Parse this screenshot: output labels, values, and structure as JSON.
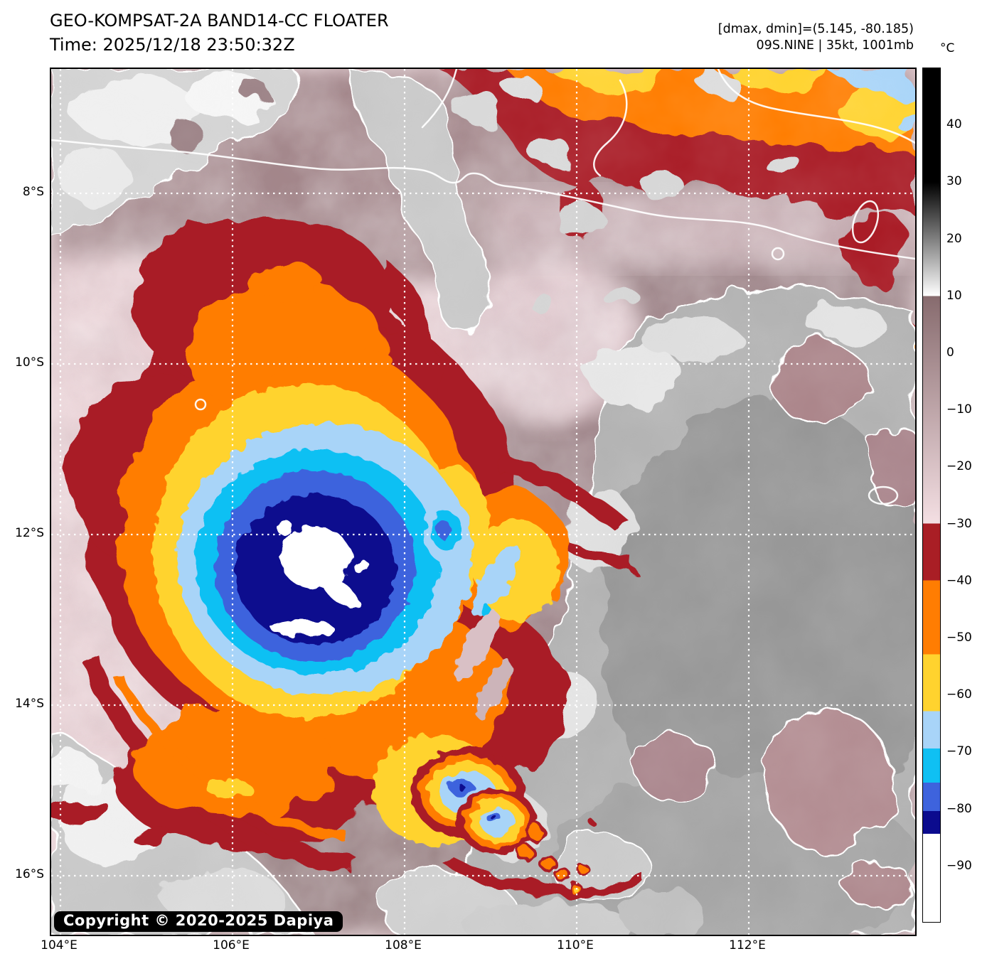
{
  "header": {
    "title": "GEO-KOMPSAT-2A BAND14-CC FLOATER",
    "time": "Time: 2025/12/18 23:50:32Z",
    "range_info": "[dmax, dmin]=(5.145, -80.185)",
    "storm_info": "09S.NINE | 35kt, 1001mb"
  },
  "map": {
    "copyright": "Copyright © 2020-2025 Dapiya",
    "x_axis": {
      "ticks": [
        {
          "deg": 104,
          "label": "104°E"
        },
        {
          "deg": 106,
          "label": "106°E"
        },
        {
          "deg": 108,
          "label": "108°E"
        },
        {
          "deg": 110,
          "label": "110°E"
        },
        {
          "deg": 112,
          "label": "112°E"
        }
      ]
    },
    "y_axis": {
      "ticks": [
        {
          "deg": 8,
          "label": "8°S"
        },
        {
          "deg": 10,
          "label": "10°S"
        },
        {
          "deg": 12,
          "label": "12°S"
        },
        {
          "deg": 14,
          "label": "14°S"
        },
        {
          "deg": 16,
          "label": "16°S"
        }
      ]
    }
  },
  "colorbar": {
    "unit": "°C",
    "max": 50,
    "min": -100,
    "ticks": [
      {
        "value": 40,
        "label": "40"
      },
      {
        "value": 30,
        "label": "30"
      },
      {
        "value": 20,
        "label": "20"
      },
      {
        "value": 10,
        "label": "10"
      },
      {
        "value": 0,
        "label": "0"
      },
      {
        "value": -10,
        "label": "−10"
      },
      {
        "value": -20,
        "label": "−20"
      },
      {
        "value": -30,
        "label": "−30"
      },
      {
        "value": -40,
        "label": "−40"
      },
      {
        "value": -50,
        "label": "−50"
      },
      {
        "value": -60,
        "label": "−60"
      },
      {
        "value": -70,
        "label": "−70"
      },
      {
        "value": -80,
        "label": "−80"
      },
      {
        "value": -90,
        "label": "−90"
      }
    ],
    "segments": [
      {
        "from": 50,
        "to": 30,
        "color": "#000000"
      },
      {
        "from": 30,
        "to": 10,
        "color_top": "#000000",
        "color_bottom": "#ffffff"
      },
      {
        "from": 10,
        "to": -30,
        "color_top": "#876b6e",
        "color_bottom": "#f4dfe3"
      },
      {
        "from": -30,
        "to": -40,
        "color": "#a91e25"
      },
      {
        "from": -40,
        "to": -53,
        "color": "#ff7d02"
      },
      {
        "from": -53,
        "to": -63,
        "color": "#ffd32e"
      },
      {
        "from": -63,
        "to": -69.5,
        "color": "#a8d4f8"
      },
      {
        "from": -69.5,
        "to": -75.5,
        "color": "#0fc0f3"
      },
      {
        "from": -75.5,
        "to": -80.5,
        "color": "#3e63dd"
      },
      {
        "from": -80.5,
        "to": -84.5,
        "color": "#0b0b8e"
      },
      {
        "from": -84.5,
        "to": -100,
        "color": "#ffffff"
      }
    ]
  },
  "palette": {
    "deep_red": "#a91e25",
    "orange": "#ff7d02",
    "yellow": "#ffd32e",
    "light_blue": "#a8d4f8",
    "cyan": "#0fc0f3",
    "royal_blue": "#3e63dd",
    "navy": "#0b0b8e",
    "cold_white": "#ffffff",
    "pink_bg": "#ecd6da",
    "mauve": "#9d8488",
    "gray_cloud": "#c6c6c6"
  }
}
